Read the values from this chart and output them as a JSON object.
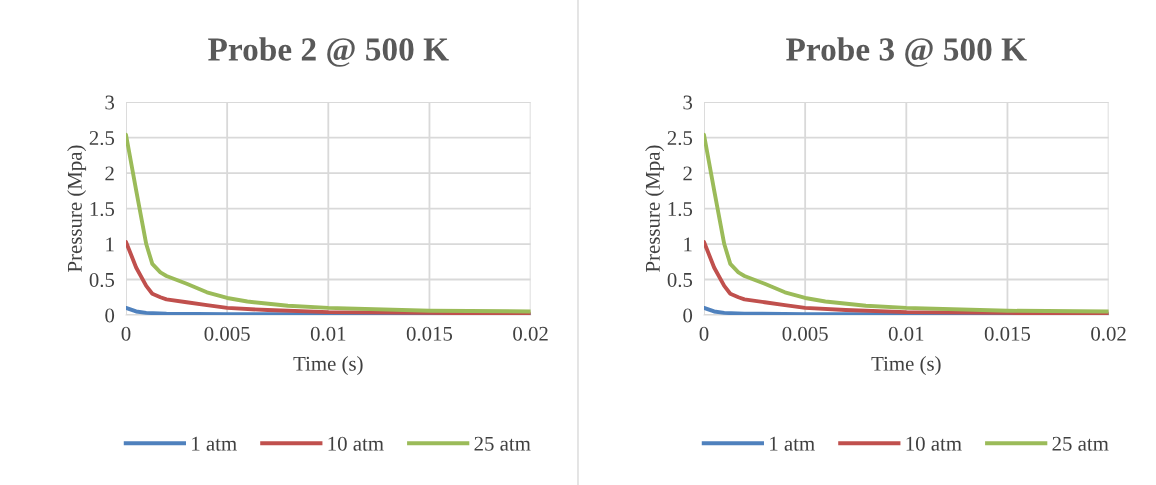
{
  "chart_data": [
    {
      "type": "line",
      "title": "Probe 2 @ 500 K",
      "xlabel": "Time (s)",
      "ylabel": "Pressure (Mpa)",
      "xlim": [
        0,
        0.02
      ],
      "xticks": [
        0,
        0.005,
        0.01,
        0.015,
        0.02
      ],
      "ylim": [
        0,
        3
      ],
      "yticks": [
        0,
        0.5,
        1,
        1.5,
        2,
        2.5,
        3
      ],
      "grid": true,
      "legend": "bottom",
      "marker": "none",
      "line_style": "solid",
      "series": [
        {
          "name": "1 atm",
          "color": "#4f81bd",
          "x": [
            0,
            0.0005,
            0.001,
            0.002,
            0.005,
            0.01,
            0.02
          ],
          "values": [
            0.1,
            0.05,
            0.03,
            0.02,
            0.01,
            0.01,
            0
          ]
        },
        {
          "name": "10 atm",
          "color": "#c0504d",
          "x": [
            0,
            0.0005,
            0.001,
            0.0013,
            0.0017,
            0.002,
            0.003,
            0.004,
            0.005,
            0.007,
            0.01,
            0.015,
            0.02
          ],
          "values": [
            1.03,
            0.67,
            0.41,
            0.3,
            0.25,
            0.22,
            0.18,
            0.14,
            0.1,
            0.07,
            0.04,
            0.03,
            0.02
          ]
        },
        {
          "name": "25 atm",
          "color": "#9bbb59",
          "x": [
            0,
            0.0005,
            0.001,
            0.0013,
            0.0017,
            0.002,
            0.003,
            0.004,
            0.005,
            0.006,
            0.008,
            0.01,
            0.015,
            0.02
          ],
          "values": [
            2.54,
            1.76,
            1.0,
            0.72,
            0.6,
            0.55,
            0.44,
            0.32,
            0.24,
            0.19,
            0.13,
            0.1,
            0.06,
            0.05
          ]
        }
      ]
    },
    {
      "type": "line",
      "title": "Probe 3 @ 500 K",
      "xlabel": "Time (s)",
      "ylabel": "Pressure (Mpa)",
      "xlim": [
        0,
        0.02
      ],
      "xticks": [
        0,
        0.005,
        0.01,
        0.015,
        0.02
      ],
      "ylim": [
        0,
        3
      ],
      "yticks": [
        0,
        0.5,
        1,
        1.5,
        2,
        2.5,
        3
      ],
      "grid": true,
      "legend": "bottom",
      "marker": "none",
      "line_style": "solid",
      "series": [
        {
          "name": "1 atm",
          "color": "#4f81bd",
          "x": [
            0,
            0.0005,
            0.001,
            0.002,
            0.005,
            0.01,
            0.02
          ],
          "values": [
            0.1,
            0.05,
            0.03,
            0.02,
            0.01,
            0.01,
            0
          ]
        },
        {
          "name": "10 atm",
          "color": "#c0504d",
          "x": [
            0,
            0.0005,
            0.001,
            0.0013,
            0.0017,
            0.002,
            0.003,
            0.004,
            0.005,
            0.007,
            0.01,
            0.015,
            0.02
          ],
          "values": [
            1.03,
            0.67,
            0.41,
            0.3,
            0.25,
            0.22,
            0.18,
            0.14,
            0.1,
            0.07,
            0.04,
            0.03,
            0.02
          ]
        },
        {
          "name": "25 atm",
          "color": "#9bbb59",
          "x": [
            0,
            0.0005,
            0.001,
            0.0013,
            0.0017,
            0.002,
            0.003,
            0.004,
            0.005,
            0.006,
            0.008,
            0.01,
            0.015,
            0.02
          ],
          "values": [
            2.54,
            1.76,
            1.0,
            0.72,
            0.6,
            0.55,
            0.44,
            0.32,
            0.24,
            0.19,
            0.13,
            0.1,
            0.06,
            0.05
          ]
        }
      ]
    }
  ]
}
